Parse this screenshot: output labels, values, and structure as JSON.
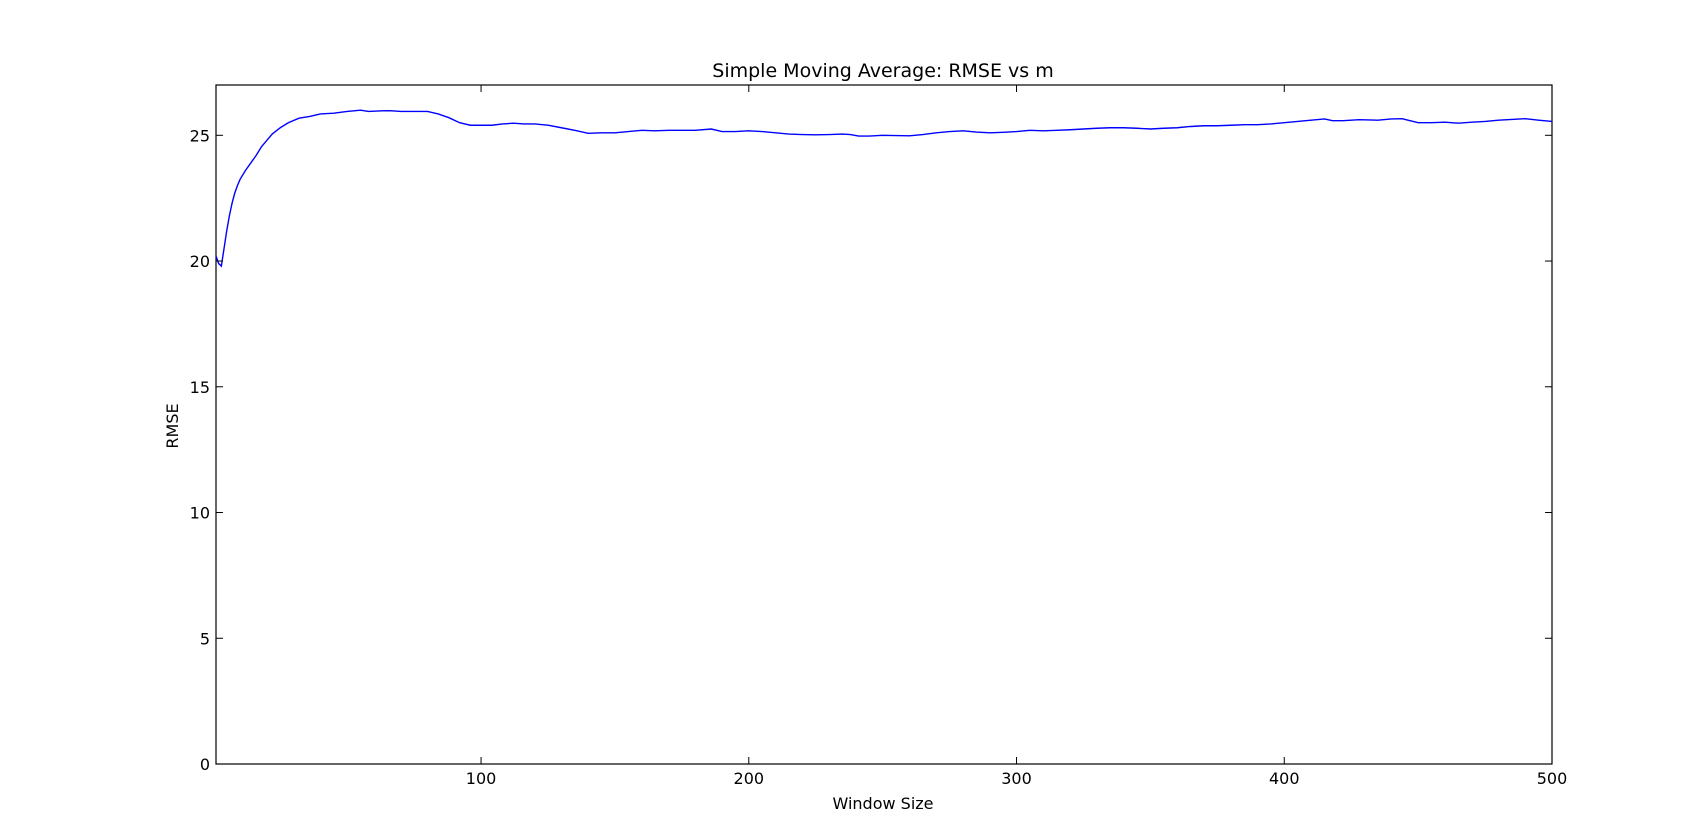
{
  "chart_data": {
    "type": "line",
    "title": "Simple Moving Average: RMSE vs m",
    "xlabel": "Window Size",
    "ylabel": "RMSE",
    "xlim": [
      1,
      500
    ],
    "ylim": [
      0,
      27
    ],
    "x_ticks": [
      100,
      200,
      300,
      400,
      500
    ],
    "y_ticks": [
      0,
      5,
      10,
      15,
      20,
      25
    ],
    "grid": false,
    "legend": "none",
    "series": [
      {
        "color": "#0000ff",
        "points": [
          [
            1,
            20.2
          ],
          [
            2,
            19.9
          ],
          [
            3,
            19.8
          ],
          [
            4,
            20.5
          ],
          [
            5,
            21.2
          ],
          [
            6,
            21.8
          ],
          [
            7,
            22.3
          ],
          [
            8,
            22.7
          ],
          [
            9,
            23.0
          ],
          [
            10,
            23.25
          ],
          [
            12,
            23.6
          ],
          [
            14,
            23.9
          ],
          [
            16,
            24.2
          ],
          [
            18,
            24.55
          ],
          [
            20,
            24.8
          ],
          [
            22,
            25.05
          ],
          [
            25,
            25.3
          ],
          [
            28,
            25.5
          ],
          [
            32,
            25.68
          ],
          [
            36,
            25.75
          ],
          [
            40,
            25.85
          ],
          [
            45,
            25.88
          ],
          [
            50,
            25.95
          ],
          [
            55,
            26.0
          ],
          [
            58,
            25.95
          ],
          [
            62,
            25.97
          ],
          [
            66,
            25.98
          ],
          [
            70,
            25.95
          ],
          [
            75,
            25.95
          ],
          [
            80,
            25.95
          ],
          [
            84,
            25.85
          ],
          [
            88,
            25.7
          ],
          [
            92,
            25.5
          ],
          [
            96,
            25.4
          ],
          [
            100,
            25.4
          ],
          [
            104,
            25.4
          ],
          [
            108,
            25.45
          ],
          [
            112,
            25.48
          ],
          [
            116,
            25.45
          ],
          [
            120,
            25.45
          ],
          [
            125,
            25.4
          ],
          [
            130,
            25.3
          ],
          [
            135,
            25.2
          ],
          [
            140,
            25.08
          ],
          [
            145,
            25.1
          ],
          [
            150,
            25.1
          ],
          [
            155,
            25.15
          ],
          [
            160,
            25.2
          ],
          [
            165,
            25.18
          ],
          [
            170,
            25.2
          ],
          [
            175,
            25.2
          ],
          [
            180,
            25.2
          ],
          [
            186,
            25.25
          ],
          [
            190,
            25.15
          ],
          [
            195,
            25.15
          ],
          [
            200,
            25.18
          ],
          [
            205,
            25.15
          ],
          [
            210,
            25.1
          ],
          [
            215,
            25.05
          ],
          [
            220,
            25.03
          ],
          [
            225,
            25.02
          ],
          [
            230,
            25.03
          ],
          [
            235,
            25.05
          ],
          [
            238,
            25.03
          ],
          [
            241,
            24.97
          ],
          [
            245,
            24.97
          ],
          [
            250,
            25.0
          ],
          [
            255,
            24.99
          ],
          [
            260,
            24.98
          ],
          [
            265,
            25.03
          ],
          [
            270,
            25.1
          ],
          [
            275,
            25.15
          ],
          [
            280,
            25.18
          ],
          [
            285,
            25.13
          ],
          [
            290,
            25.1
          ],
          [
            295,
            25.12
          ],
          [
            300,
            25.15
          ],
          [
            305,
            25.2
          ],
          [
            310,
            25.18
          ],
          [
            315,
            25.2
          ],
          [
            320,
            25.22
          ],
          [
            325,
            25.25
          ],
          [
            330,
            25.28
          ],
          [
            335,
            25.3
          ],
          [
            340,
            25.3
          ],
          [
            345,
            25.28
          ],
          [
            350,
            25.25
          ],
          [
            355,
            25.28
          ],
          [
            360,
            25.3
          ],
          [
            365,
            25.35
          ],
          [
            370,
            25.38
          ],
          [
            375,
            25.38
          ],
          [
            380,
            25.4
          ],
          [
            385,
            25.42
          ],
          [
            390,
            25.42
          ],
          [
            395,
            25.45
          ],
          [
            400,
            25.5
          ],
          [
            405,
            25.55
          ],
          [
            410,
            25.6
          ],
          [
            415,
            25.65
          ],
          [
            418,
            25.58
          ],
          [
            422,
            25.58
          ],
          [
            428,
            25.62
          ],
          [
            435,
            25.6
          ],
          [
            440,
            25.65
          ],
          [
            444,
            25.66
          ],
          [
            447,
            25.58
          ],
          [
            450,
            25.5
          ],
          [
            455,
            25.5
          ],
          [
            460,
            25.52
          ],
          [
            465,
            25.48
          ],
          [
            470,
            25.52
          ],
          [
            475,
            25.55
          ],
          [
            480,
            25.6
          ],
          [
            485,
            25.63
          ],
          [
            490,
            25.66
          ],
          [
            495,
            25.6
          ],
          [
            500,
            25.55
          ]
        ]
      }
    ]
  }
}
